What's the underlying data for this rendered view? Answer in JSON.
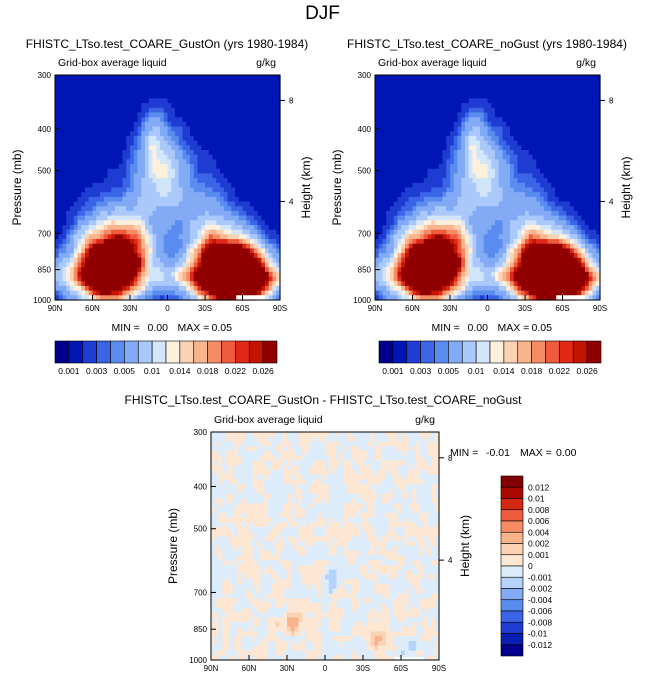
{
  "page_title": "DJF",
  "colormap": [
    "#00008c",
    "#0016b4",
    "#1e3cd2",
    "#3c64e6",
    "#5a8cf0",
    "#82aaf5",
    "#aac8fa",
    "#d2e6fa",
    "#fff0dc",
    "#fcd2b4",
    "#fab48c",
    "#f58c64",
    "#f05a3c",
    "#e12814",
    "#c31400",
    "#910000"
  ],
  "chart_data": [
    {
      "type": "heatmap",
      "panel": "top-left",
      "title": "FHISTC_LTso.test_COARE_GustOn (yrs 1980-1984)",
      "subtitle_left": "Grid-box average liquid",
      "subtitle_right": "g/kg",
      "ylabel": "Pressure (mb)",
      "y2label": "Height (km)",
      "xticks": [
        "90N",
        "60N",
        "30N",
        "0",
        "30S",
        "60S",
        "90S"
      ],
      "xlim": [
        90,
        -90
      ],
      "yticks": [
        "300",
        "400",
        "500",
        "700",
        "850",
        "1000"
      ],
      "yticks_values": [
        300,
        400,
        500,
        700,
        850,
        1000
      ],
      "ylim": [
        300,
        1000
      ],
      "y_scale": "log",
      "y2ticks": [
        "8",
        "4"
      ],
      "y2ticks_values": [
        8,
        4
      ],
      "min_label": "MIN =",
      "min_value": "0.00",
      "max_label": "MAX =",
      "max_value": "0.05",
      "colorbar_labels": [
        "0.001",
        "0.003",
        "0.005",
        "0.01",
        "0.014",
        "0.018",
        "0.022",
        "0.026"
      ],
      "levels": [
        0.001,
        0.002,
        0.003,
        0.004,
        0.005,
        0.0075,
        0.01,
        0.012,
        0.014,
        0.016,
        0.018,
        0.02,
        0.022,
        0.024,
        0.026
      ],
      "features": [
        {
          "lat": 45,
          "p": 830,
          "dlat": 12,
          "dp": 120,
          "value": 0.026
        },
        {
          "lat": -50,
          "p": 880,
          "dlat": 13,
          "dp": 100,
          "value": 0.05
        },
        {
          "lat": 5,
          "p": 500,
          "dlat": 9,
          "dp": 80,
          "value": 0.008
        }
      ]
    },
    {
      "type": "heatmap",
      "panel": "top-right",
      "title": "FHISTC_LTso.test_COARE_noGust (yrs 1980-1984)",
      "subtitle_left": "Grid-box average liquid",
      "subtitle_right": "g/kg",
      "ylabel": "Pressure (mb)",
      "y2label": "Height (km)",
      "xticks": [
        "90N",
        "60N",
        "30N",
        "0",
        "30S",
        "60S",
        "90S"
      ],
      "xlim": [
        90,
        -90
      ],
      "yticks": [
        "300",
        "400",
        "500",
        "700",
        "850",
        "1000"
      ],
      "yticks_values": [
        300,
        400,
        500,
        700,
        850,
        1000
      ],
      "ylim": [
        300,
        1000
      ],
      "y_scale": "log",
      "y2ticks": [
        "8",
        "4"
      ],
      "y2ticks_values": [
        8,
        4
      ],
      "min_label": "MIN =",
      "min_value": "0.00",
      "max_label": "MAX =",
      "max_value": "0.05",
      "colorbar_labels": [
        "0.001",
        "0.003",
        "0.005",
        "0.01",
        "0.014",
        "0.018",
        "0.022",
        "0.026"
      ],
      "levels": [
        0.001,
        0.002,
        0.003,
        0.004,
        0.005,
        0.0075,
        0.01,
        0.012,
        0.014,
        0.016,
        0.018,
        0.02,
        0.022,
        0.024,
        0.026
      ],
      "features": [
        {
          "lat": 45,
          "p": 830,
          "dlat": 12,
          "dp": 120,
          "value": 0.026
        },
        {
          "lat": -50,
          "p": 880,
          "dlat": 13,
          "dp": 100,
          "value": 0.05
        },
        {
          "lat": 5,
          "p": 500,
          "dlat": 9,
          "dp": 80,
          "value": 0.008
        }
      ]
    },
    {
      "type": "heatmap",
      "panel": "bottom-difference",
      "title": "FHISTC_LTso.test_COARE_GustOn - FHISTC_LTso.test_COARE_noGust",
      "subtitle_left": "Grid-box average liquid",
      "subtitle_right": "g/kg",
      "ylabel": "Pressure (mb)",
      "y2label": "Height (km)",
      "xticks": [
        "90N",
        "60N",
        "30N",
        "0",
        "30S",
        "60S",
        "90S"
      ],
      "xlim": [
        90,
        -90
      ],
      "yticks": [
        "300",
        "400",
        "500",
        "700",
        "850",
        "1000"
      ],
      "yticks_values": [
        300,
        400,
        500,
        700,
        850,
        1000
      ],
      "ylim": [
        300,
        1000
      ],
      "y_scale": "log",
      "y2ticks": [
        "8",
        "4"
      ],
      "y2ticks_values": [
        8,
        4
      ],
      "min_label": "MIN =",
      "min_value": "-0.01",
      "max_label": "MAX =",
      "max_value": "0.00",
      "colorbar_labels": [
        "0.012",
        "0.01",
        "0.008",
        "0.006",
        "0.004",
        "0.002",
        "0.001",
        "0",
        "-0.001",
        "-0.002",
        "-0.004",
        "-0.006",
        "-0.008",
        "-0.01",
        "-0.012"
      ],
      "levels": [
        -0.012,
        -0.01,
        -0.008,
        -0.006,
        -0.004,
        -0.002,
        -0.001,
        0,
        0.001,
        0.002,
        0.004,
        0.006,
        0.008,
        0.01,
        0.012
      ]
    }
  ]
}
